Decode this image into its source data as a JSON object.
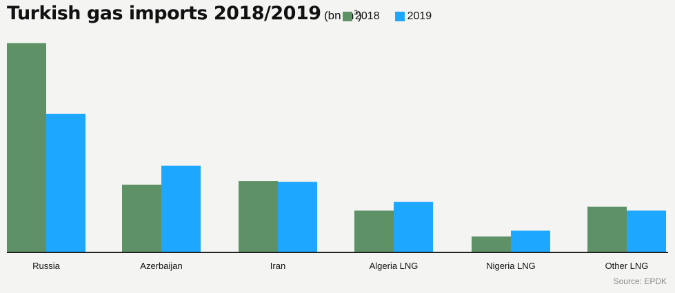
{
  "title": {
    "main": "Turkish gas imports 2018/2019",
    "unit_prefix": "(bn m",
    "unit_sup": "3",
    "unit_suffix": ")"
  },
  "source": "Source: EPDK",
  "colors": {
    "s2018": "#5e9166",
    "s2019": "#1ea7ff",
    "axis": "#222222",
    "background": "#f4f4f2"
  },
  "chart_data": {
    "type": "bar",
    "categories": [
      "Russia",
      "Azerbaijan",
      "Iran",
      "Algeria LNG",
      "Nigeria LNG",
      "Other LNG"
    ],
    "series": [
      {
        "name": "2018",
        "values": [
          21.8,
          7.0,
          7.4,
          4.3,
          1.6,
          4.7
        ]
      },
      {
        "name": "2019",
        "values": [
          14.4,
          9.0,
          7.3,
          5.2,
          2.2,
          4.3
        ]
      }
    ],
    "ylim": [
      0,
      22
    ],
    "legend": "top",
    "grid": false,
    "xlabel": "",
    "ylabel": ""
  }
}
